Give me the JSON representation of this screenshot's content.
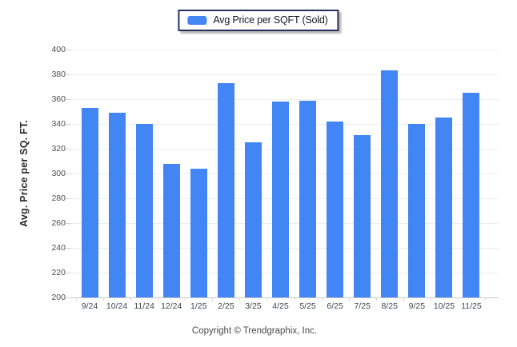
{
  "legend": {
    "label": "Avg Price per SQFT (Sold)",
    "swatch_color": "#4285f4"
  },
  "y_axis": {
    "title": "Avg. Price per SQ. FT."
  },
  "footer": {
    "copyright": "Copyright © Trendgraphix, Inc."
  },
  "colors": {
    "bar": "#4285f4",
    "legend_border": "#252f5a",
    "gridline": "#ededed",
    "axis_line": "#c9c9c9",
    "tick_text": "#4d4d4d"
  },
  "chart_data": {
    "type": "bar",
    "title": "Avg Price per SQFT (Sold)",
    "categories": [
      "9/24",
      "10/24",
      "11/24",
      "12/24",
      "1/25",
      "2/25",
      "3/25",
      "4/25",
      "5/25",
      "6/25",
      "7/25",
      "8/25",
      "9/25",
      "10/25",
      "11/25"
    ],
    "values": [
      353,
      349,
      340,
      308,
      304,
      373,
      325,
      358,
      359,
      342,
      331,
      383,
      340,
      345,
      365
    ],
    "series_name": "Avg Price per SQFT (Sold)",
    "xlabel": "",
    "ylabel": "Avg. Price per SQ. FT.",
    "ylim": [
      200,
      400
    ],
    "ytick_step": 20,
    "grid": true,
    "legend_position": "top-center",
    "bar_color": "#4285f4"
  }
}
